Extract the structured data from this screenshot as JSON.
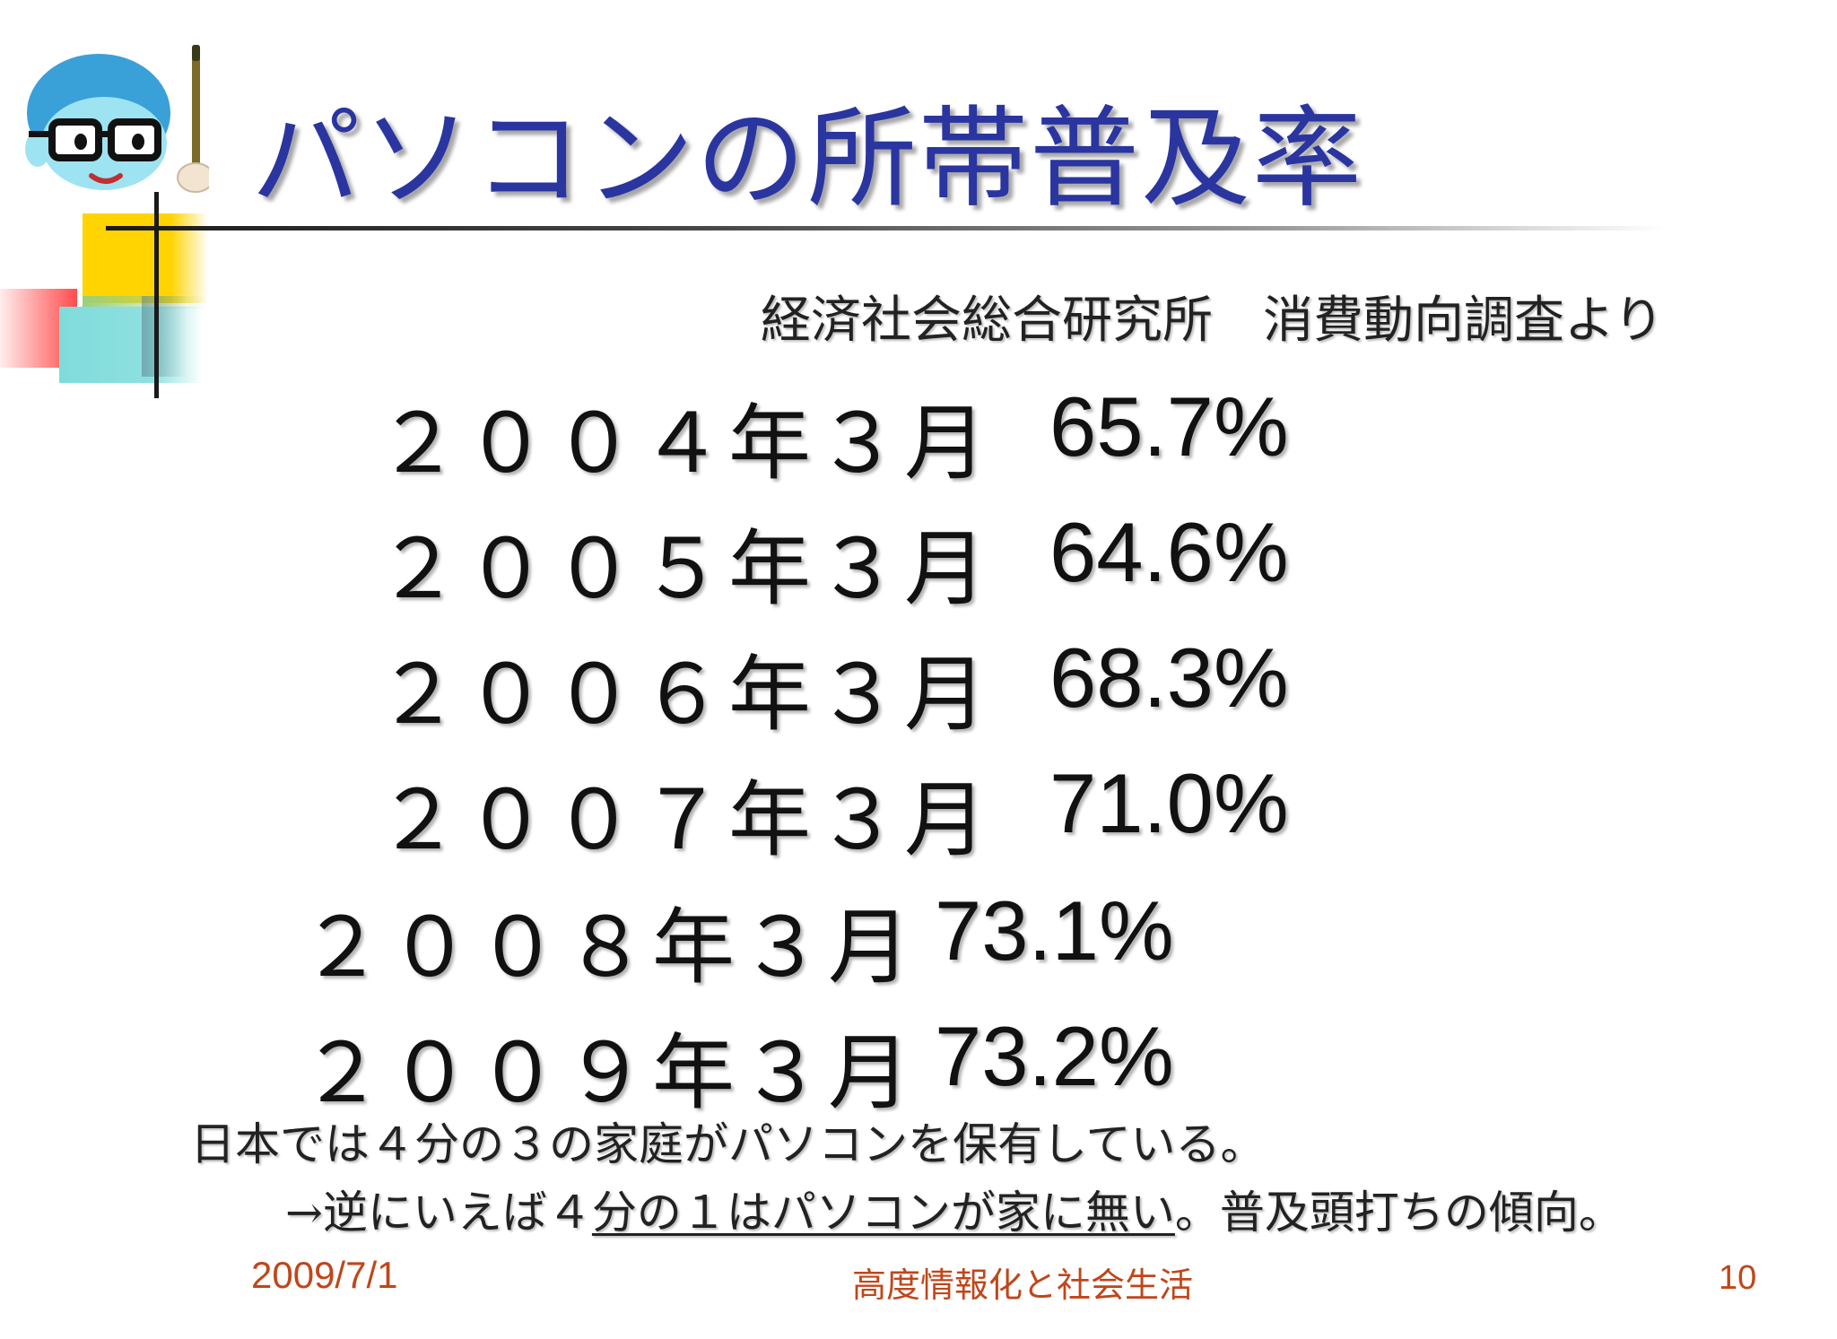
{
  "slide": {
    "title": "パソコンの所帯普及率",
    "source": "経済社会総合研究所　消費動向調査より",
    "rows": [
      {
        "date": "２００４年３月",
        "percent": "65.7%"
      },
      {
        "date": "２００５年３月",
        "percent": "64.6%"
      },
      {
        "date": "２００６年３月",
        "percent": "68.3%"
      },
      {
        "date": "２００７年３月",
        "percent": "71.0%"
      },
      {
        "date": "２００８年３月",
        "percent": "73.1%"
      },
      {
        "date": "２００９年３月",
        "percent": "73.2%"
      }
    ],
    "note_line1": "日本では４分の３の家庭がパソコンを保有している。",
    "note_line2": {
      "prefix": "→逆にいえば４",
      "underlined": "分の１はパソコンが家に無い",
      "suffix": "。普及頭打ちの傾向。"
    }
  },
  "footer": {
    "date": "2009/7/1",
    "course": "高度情報化と社会生活",
    "page": "10"
  },
  "colors": {
    "title": "#2a35a0",
    "footer": "#c0461a",
    "accent_yellow": "#ffd400",
    "accent_cyan": "#7fdcda",
    "accent_red": "#ff4b4b"
  },
  "icons": [
    "teacher-mascot-icon"
  ]
}
